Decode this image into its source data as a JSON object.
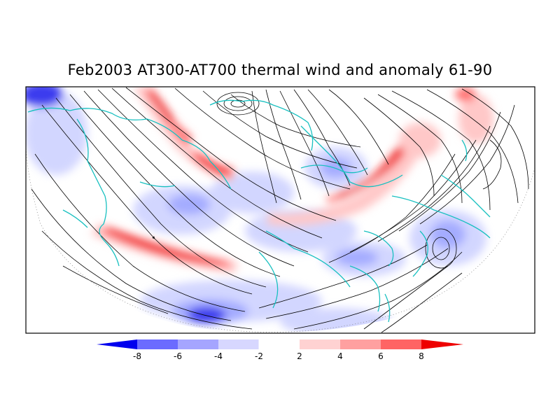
{
  "title": "Feb2003 AT300-AT700 thermal wind and anomaly 61-90",
  "colorbar": {
    "labels": [
      "-8",
      "-6",
      "-4",
      "-2",
      "2",
      "4",
      "6",
      "8"
    ],
    "colors": [
      "#0000ee",
      "#6b6bff",
      "#a5a5ff",
      "#d7d7ff",
      "#ffffff",
      "#ffd2d2",
      "#ffa0a0",
      "#ff6464",
      "#ee0000"
    ]
  },
  "map": {
    "anomaly_colors": {
      "strong_pos": "#f01818",
      "pos": "#ff7070",
      "weak_pos": "#ffc8c8",
      "weak_neg": "#d0d4ff",
      "neg": "#a0a8ff",
      "strong_neg": "#3030ee"
    },
    "coast_color": "#18c0c0",
    "streamline_color": "#000000"
  }
}
